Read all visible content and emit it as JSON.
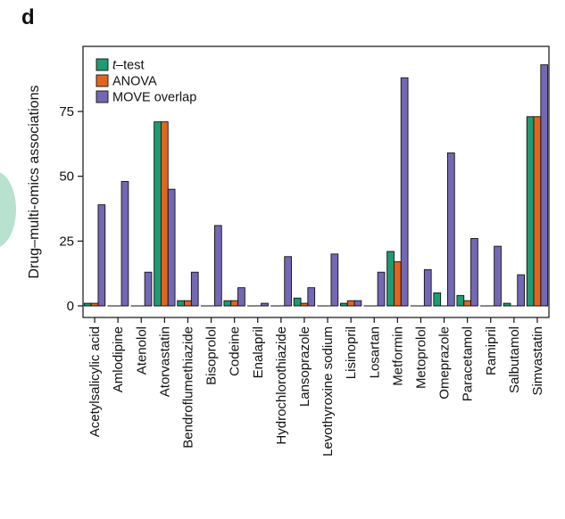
{
  "panel_label": "d",
  "chart_data": {
    "type": "bar",
    "title": "",
    "xlabel": "",
    "ylabel": "Drug–multi-omics associations",
    "ylim": [
      0,
      100
    ],
    "yticks": [
      0,
      25,
      50,
      75
    ],
    "legend_position": "top-left",
    "categories": [
      "Acetylsalicylic acid",
      "Amlodipine",
      "Atenolol",
      "Atorvastatin",
      "Bendroflumethiazide",
      "Bisoprolol",
      "Codeine",
      "Enalapril",
      "Hydrochlorothiazide",
      "Lansoprazole",
      "Levothyroxine sodium",
      "Lisinopril",
      "Losartan",
      "Metformin",
      "Metoprolol",
      "Omeprazole",
      "Paracetamol",
      "Ramipril",
      "Salbutamol",
      "Simvastatin"
    ],
    "series": [
      {
        "name": "t–test",
        "name_italic": "t",
        "name_rest": "–test",
        "color": "#1f9a72",
        "values": [
          1,
          0,
          0,
          71,
          2,
          0,
          2,
          0,
          0,
          3,
          0,
          1,
          0,
          21,
          0,
          5,
          4,
          0,
          1,
          73
        ]
      },
      {
        "name": "ANOVA",
        "color": "#e2651f",
        "values": [
          1,
          0,
          0,
          71,
          2,
          0,
          2,
          0,
          0,
          1,
          0,
          2,
          0,
          17,
          0,
          0,
          2,
          0,
          0,
          73
        ]
      },
      {
        "name": "MOVE overlap",
        "color": "#7468b4",
        "values": [
          39,
          48,
          13,
          45,
          13,
          31,
          7,
          1,
          19,
          7,
          20,
          2,
          13,
          88,
          14,
          59,
          26,
          23,
          12,
          93
        ]
      }
    ]
  }
}
